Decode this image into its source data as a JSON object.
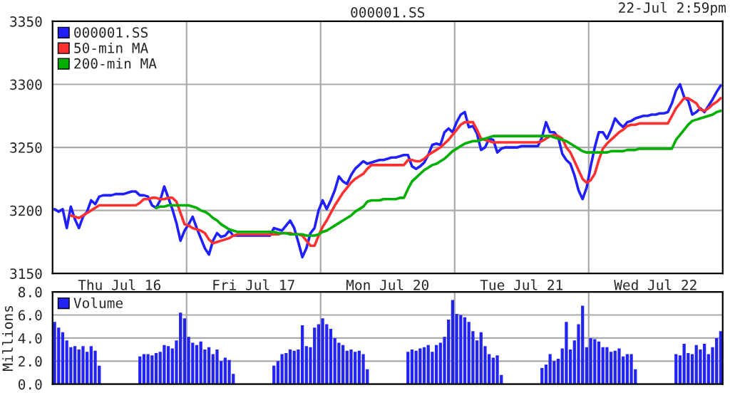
{
  "chart_data": [
    {
      "type": "line",
      "title": "000001.SS",
      "annotations": [
        "22-Jul 2:59pm"
      ],
      "legend": "top left",
      "grid": true,
      "ylim": [
        3150,
        3350
      ],
      "yticks": [
        3150,
        3200,
        3250,
        3300,
        3350
      ],
      "categories": [
        null,
        null,
        null,
        null,
        null,
        null,
        null,
        null,
        null,
        null,
        null,
        null,
        null,
        null,
        null,
        null,
        "Thu Jul 16",
        null,
        null,
        null,
        null,
        null,
        null,
        null,
        null,
        null,
        null,
        null,
        null,
        null,
        null,
        null,
        null,
        null,
        null,
        null,
        null,
        null,
        null,
        null,
        null,
        null,
        null,
        null,
        null,
        null,
        null,
        null,
        null,
        "Fri Jul 17",
        null,
        null,
        null,
        null,
        null,
        null,
        null,
        null,
        null,
        null,
        null,
        null,
        null,
        null,
        null,
        null,
        null,
        null,
        null,
        null,
        null,
        null,
        null,
        null,
        null,
        null,
        null,
        null,
        null,
        null,
        null,
        null,
        "Mon Jul 20",
        null,
        null,
        null,
        null,
        null,
        null,
        null,
        null,
        null,
        null,
        null,
        null,
        null,
        null,
        null,
        null,
        null,
        null,
        null,
        null,
        null,
        null,
        null,
        null,
        null,
        null,
        null,
        null,
        null,
        null,
        null,
        null,
        "Tue Jul 21",
        null,
        null,
        null,
        null,
        null,
        null,
        null,
        null,
        null,
        null,
        null,
        null,
        null,
        null,
        null,
        null,
        null,
        null,
        null,
        null,
        null,
        null,
        null,
        null,
        null,
        null,
        null,
        null,
        null,
        null,
        null,
        null,
        "Wed Jul 22",
        null,
        null,
        null,
        null,
        null,
        null,
        null,
        null,
        null,
        null,
        null,
        null,
        null,
        null,
        null,
        null
      ],
      "series": [
        {
          "name": "000001.SS",
          "color": "#2020ff",
          "values": [
            3201,
            3199,
            3201,
            3186,
            3203,
            3193,
            3186,
            3195,
            3199,
            3208,
            3205,
            3211,
            3212,
            3212,
            3212,
            3213,
            3213,
            3213,
            3214,
            3215,
            3215,
            3212,
            3212,
            3211,
            3204,
            3202,
            3208,
            3219,
            3210,
            3201,
            3190,
            3176,
            3184,
            3189,
            3195,
            3186,
            3178,
            3170,
            3165,
            3176,
            3182,
            3179,
            3180,
            3184,
            3180,
            3180,
            3180,
            3180,
            3180,
            3180,
            3180,
            3180,
            3180,
            3180,
            3186,
            3185,
            3184,
            3188,
            3192,
            3186,
            3175,
            3163,
            3170,
            3182,
            3186,
            3200,
            3208,
            3201,
            3208,
            3216,
            3227,
            3223,
            3221,
            3228,
            3233,
            3236,
            3239,
            3237,
            3238,
            3239,
            3240,
            3240,
            3241,
            3242,
            3242,
            3243,
            3244,
            3244,
            3235,
            3233,
            3235,
            3238,
            3244,
            3252,
            3253,
            3252,
            3262,
            3265,
            3262,
            3270,
            3276,
            3278,
            3266,
            3267,
            3261,
            3248,
            3250,
            3257,
            3256,
            3246,
            3249,
            3250,
            3250,
            3250,
            3250,
            3251,
            3251,
            3251,
            3251,
            3251,
            3258,
            3270,
            3262,
            3262,
            3258,
            3245,
            3240,
            3237,
            3228,
            3216,
            3209,
            3218,
            3235,
            3250,
            3262,
            3262,
            3257,
            3264,
            3273,
            3269,
            3266,
            3270,
            3271,
            3273,
            3274,
            3275,
            3275,
            3276,
            3276,
            3277,
            3277,
            3278,
            3285,
            3295,
            3300,
            3290,
            3287,
            3276,
            3278,
            3281,
            3278,
            3283,
            3288,
            3294,
            3299
          ]
        },
        {
          "name": "50-min MA",
          "color": "#ff3030",
          "values": [
            null,
            null,
            null,
            null,
            3196,
            3195,
            3194,
            3196,
            3198,
            3200,
            3202,
            3204,
            3204,
            3204,
            3204,
            3204,
            3204,
            3204,
            3204,
            3204,
            3204,
            3206,
            3209,
            3209,
            3210,
            3210,
            3209,
            3209,
            3210,
            3210,
            3207,
            3198,
            3189,
            3188,
            3186,
            3185,
            3184,
            3182,
            3177,
            3174,
            3175,
            3176,
            3177,
            3178,
            3180,
            3181,
            3181,
            3181,
            3181,
            3181,
            3181,
            3181,
            3181,
            3181,
            3181,
            3181,
            3182,
            3182,
            3182,
            3181,
            3181,
            3180,
            3176,
            3172,
            3172,
            3180,
            3187,
            3192,
            3198,
            3204,
            3209,
            3214,
            3218,
            3222,
            3225,
            3227,
            3229,
            3233,
            3236,
            3236,
            3236,
            3236,
            3236,
            3236,
            3236,
            3236,
            3236,
            3240,
            3240,
            3239,
            3239,
            3241,
            3244,
            3246,
            3248,
            3250,
            3253,
            3256,
            3260,
            3264,
            3268,
            3270,
            3270,
            3270,
            3264,
            3257,
            3256,
            3255,
            3254,
            3254,
            3254,
            3254,
            3254,
            3254,
            3254,
            3254,
            3254,
            3254,
            3254,
            3254,
            3255,
            3257,
            3259,
            3260,
            3259,
            3257,
            3250,
            3246,
            3239,
            3232,
            3225,
            3222,
            3224,
            3229,
            3240,
            3249,
            3253,
            3256,
            3259,
            3262,
            3264,
            3267,
            3268,
            3268,
            3269,
            3269,
            3269,
            3269,
            3269,
            3269,
            3269,
            3269,
            3275,
            3281,
            3285,
            3289,
            3289,
            3287,
            3285,
            3280,
            3279,
            3281,
            3284,
            3286,
            3289
          ]
        },
        {
          "name": "200-min MA",
          "color": "#00b000",
          "values": [
            null,
            null,
            null,
            null,
            null,
            null,
            null,
            null,
            null,
            null,
            null,
            null,
            null,
            null,
            null,
            null,
            null,
            null,
            null,
            null,
            null,
            null,
            null,
            null,
            null,
            3202,
            3203,
            3203,
            3204,
            3204,
            3204,
            3204,
            3204,
            3204,
            3203,
            3202,
            3200,
            3199,
            3197,
            3194,
            3192,
            3189,
            3187,
            3185,
            3184,
            3183,
            3183,
            3183,
            3183,
            3183,
            3183,
            3183,
            3183,
            3183,
            3183,
            3182,
            3182,
            3182,
            3181,
            3181,
            3181,
            3181,
            3180,
            3180,
            3180,
            3181,
            3183,
            3184,
            3186,
            3188,
            3190,
            3192,
            3194,
            3196,
            3199,
            3201,
            3203,
            3207,
            3208,
            3208,
            3208,
            3209,
            3209,
            3209,
            3209,
            3210,
            3210,
            3217,
            3223,
            3226,
            3229,
            3232,
            3234,
            3236,
            3237,
            3239,
            3241,
            3244,
            3247,
            3249,
            3251,
            3253,
            3254,
            3255,
            3255,
            3256,
            3257,
            3258,
            3259,
            3259,
            3259,
            3259,
            3259,
            3259,
            3259,
            3259,
            3259,
            3259,
            3259,
            3259,
            3259,
            3259,
            3259,
            3258,
            3257,
            3256,
            3255,
            3253,
            3251,
            3249,
            3247,
            3246,
            3246,
            3246,
            3246,
            3246,
            3246,
            3247,
            3247,
            3247,
            3247,
            3248,
            3248,
            3248,
            3249,
            3249,
            3249,
            3249,
            3249,
            3249,
            3249,
            3249,
            3249,
            3256,
            3260,
            3264,
            3268,
            3271,
            3272,
            3273,
            3274,
            3275,
            3276,
            3278,
            3279
          ]
        }
      ]
    },
    {
      "type": "bar",
      "ylabel": "Millions",
      "legend": "top left",
      "grid": true,
      "tick_labels": "y",
      "categories": [
        null,
        null,
        null,
        null,
        null,
        null,
        null,
        null,
        null,
        null,
        null,
        null,
        null,
        null,
        null,
        null,
        null,
        null,
        null,
        null,
        null,
        null,
        null,
        null,
        null,
        null,
        null,
        null,
        null,
        null,
        null,
        null,
        null,
        null,
        null,
        null,
        null,
        null,
        null,
        null,
        null,
        null,
        null,
        null,
        null,
        null,
        null,
        null,
        null,
        null,
        null,
        null,
        null,
        null,
        null,
        null,
        null,
        null,
        null,
        null,
        null,
        null,
        null,
        null,
        null,
        null,
        null,
        null,
        null,
        null,
        null,
        null,
        null,
        null,
        null,
        null,
        null,
        null,
        null,
        null,
        null,
        null,
        null,
        null,
        null,
        null,
        null,
        null,
        null,
        null,
        null,
        null,
        null,
        null,
        null,
        null,
        null,
        null,
        null,
        null,
        null,
        null,
        null,
        null,
        null,
        null,
        null,
        null,
        null,
        null,
        null,
        null,
        null,
        null,
        null,
        null,
        null,
        null,
        null,
        null,
        null,
        null,
        null,
        null,
        null,
        null,
        null,
        null,
        null,
        null,
        null,
        null,
        null,
        null,
        null,
        null,
        null,
        null,
        null,
        null,
        null,
        null,
        null,
        null,
        null,
        null,
        null,
        null,
        null,
        null,
        null,
        null,
        null,
        null,
        null,
        null,
        null,
        null,
        null,
        null,
        null,
        null,
        null,
        null,
        null
      ],
      "ylim": [
        0,
        8
      ],
      "yticks": [
        {
          "value": 0,
          "label": "0.0"
        },
        {
          "value": 2,
          "label": "2.0"
        },
        {
          "value": 4,
          "label": "4.0"
        },
        {
          "value": 6,
          "label": "6.0"
        },
        {
          "value": 8,
          "label": "8.0"
        }
      ],
      "series": [
        {
          "name": "Volume",
          "color": "#2424f0",
          "values": [
            5.4,
            4.9,
            4.5,
            3.8,
            3.2,
            3.3,
            3.0,
            3.3,
            2.8,
            3.3,
            2.9,
            1.6,
            null,
            null,
            null,
            null,
            null,
            null,
            null,
            null,
            null,
            2.4,
            2.6,
            2.6,
            2.5,
            2.7,
            2.8,
            3.4,
            3.3,
            3.1,
            3.8,
            6.2,
            5.7,
            4.1,
            3.6,
            3.4,
            3.7,
            3.0,
            3.2,
            2.6,
            3.0,
            2.0,
            2.3,
            2.1,
            0.9,
            null,
            null,
            null,
            null,
            null,
            null,
            null,
            null,
            null,
            1.6,
            2.0,
            2.6,
            2.7,
            3.0,
            2.9,
            3.0,
            5.1,
            3.3,
            3.2,
            4.9,
            5.2,
            5.7,
            5.2,
            4.8,
            4.0,
            3.6,
            3.4,
            2.9,
            3.0,
            2.8,
            2.9,
            2.6,
            1.3,
            null,
            null,
            null,
            null,
            null,
            null,
            null,
            null,
            null,
            2.8,
            3.0,
            2.9,
            3.1,
            3.2,
            3.4,
            2.8,
            3.4,
            3.6,
            4.1,
            5.6,
            7.3,
            6.1,
            6.0,
            5.8,
            5.4,
            4.6,
            3.8,
            4.5,
            3.3,
            2.6,
            2.3,
            2.5,
            0.8,
            null,
            null,
            null,
            null,
            null,
            null,
            null,
            null,
            null,
            1.4,
            1.7,
            2.6,
            2.0,
            2.2,
            3.1,
            5.4,
            3.0,
            3.8,
            5.2,
            6.8,
            3.2,
            4.0,
            3.9,
            3.7,
            3.2,
            3.2,
            2.8,
            2.9,
            3.1,
            2.4,
            2.6,
            2.6,
            1.3,
            null,
            null,
            null,
            null,
            null,
            null,
            null,
            null,
            null,
            2.6,
            2.5,
            3.5,
            2.7,
            2.6,
            3.4,
            3.0,
            3.5,
            2.6,
            3.2,
            4.0,
            4.6
          ]
        }
      ]
    }
  ]
}
